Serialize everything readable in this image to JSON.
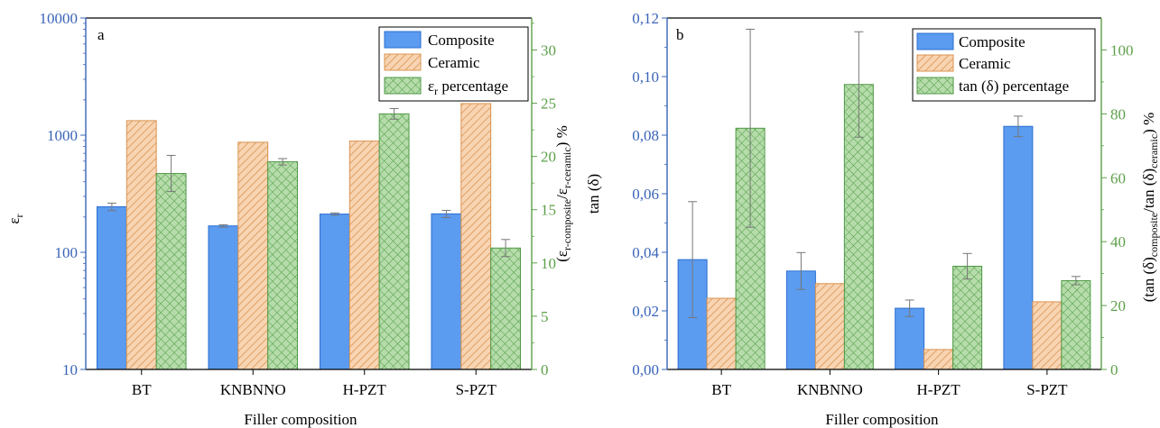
{
  "colors": {
    "composite": "#5b9bf0",
    "composite_edge": "#2e6fd0",
    "ceramic": "#f8d4b3",
    "ceramic_hatch": "#d9944f",
    "percentage": "#b5dcaa",
    "percentage_hatch": "#4f9a45",
    "left_axis": "#3a64b8",
    "right_axis": "#5ea04a",
    "black": "#000000"
  },
  "chart_data": [
    {
      "type": "bar",
      "panel_label": "a",
      "categories": [
        "BT",
        "KNBNNO",
        "H-PZT",
        "S-PZT"
      ],
      "xlabel": "Filler composition",
      "ylabel": "ε",
      "ylabel_sub": "r",
      "y_scale": "log",
      "ylim": [
        10,
        10000
      ],
      "yticks": [
        10,
        100,
        1000,
        10000
      ],
      "ytick_labels": [
        "10",
        "100",
        "1000",
        "10000"
      ],
      "y2label_main": "(ε",
      "y2label_sub1": "r-composite",
      "y2label_mid": "/ε",
      "y2label_sub2": "r-ceramic",
      "y2label_end": ") %",
      "y2lim": [
        0,
        33
      ],
      "y2ticks": [
        0,
        5,
        10,
        15,
        20,
        25,
        30
      ],
      "y2tick_labels": [
        "0",
        "5",
        "10",
        "15",
        "20",
        "25",
        "30"
      ],
      "series": [
        {
          "name": "Composite",
          "axis": "left",
          "values": [
            245,
            168,
            212,
            213
          ],
          "errors": [
            18,
            4,
            5,
            15
          ]
        },
        {
          "name": "Ceramic",
          "axis": "left",
          "values": [
            1330,
            870,
            890,
            1860
          ],
          "errors": null
        },
        {
          "name": "percentage",
          "name_prefix": "ε",
          "name_sub": "r",
          "name_suffix": " percentage",
          "axis": "right",
          "values": [
            18.4,
            19.5,
            24.0,
            11.4
          ],
          "errors": [
            1.7,
            0.3,
            0.5,
            0.8
          ]
        }
      ],
      "legend": "top-right"
    },
    {
      "type": "bar",
      "panel_label": "b",
      "categories": [
        "BT",
        "KNBNNO",
        "H-PZT",
        "S-PZT"
      ],
      "xlabel": "Filler composition",
      "ylabel": "tan (δ)",
      "y_scale": "linear",
      "ylim": [
        0,
        0.12
      ],
      "yticks": [
        0,
        0.02,
        0.04,
        0.06,
        0.08,
        0.1,
        0.12
      ],
      "ytick_labels": [
        "0,00",
        "0,02",
        "0,04",
        "0,06",
        "0,08",
        "0,10",
        "0,12"
      ],
      "y2label_main": "(tan (δ)",
      "y2label_sub1": "composite",
      "y2label_mid": "/tan (δ)",
      "y2label_sub2": "ceramic",
      "y2label_end": ") %",
      "y2lim": [
        0,
        110
      ],
      "y2ticks": [
        0,
        20,
        40,
        60,
        80,
        100
      ],
      "y2tick_labels": [
        "0",
        "20",
        "40",
        "60",
        "80",
        "100"
      ],
      "series": [
        {
          "name": "Composite",
          "axis": "left",
          "values": [
            0.0375,
            0.0336,
            0.0209,
            0.083
          ],
          "errors": [
            0.0198,
            0.0063,
            0.0028,
            0.0035
          ]
        },
        {
          "name": "Ceramic",
          "axis": "left",
          "values": [
            0.0243,
            0.0293,
            0.0068,
            0.0231
          ],
          "errors": null
        },
        {
          "name": "tan (δ) percentage",
          "axis": "right",
          "values": [
            75.5,
            89.2,
            32.3,
            27.8
          ],
          "errors": [
            31.0,
            16.5,
            4.0,
            1.3
          ]
        }
      ],
      "legend": "top-right"
    }
  ]
}
